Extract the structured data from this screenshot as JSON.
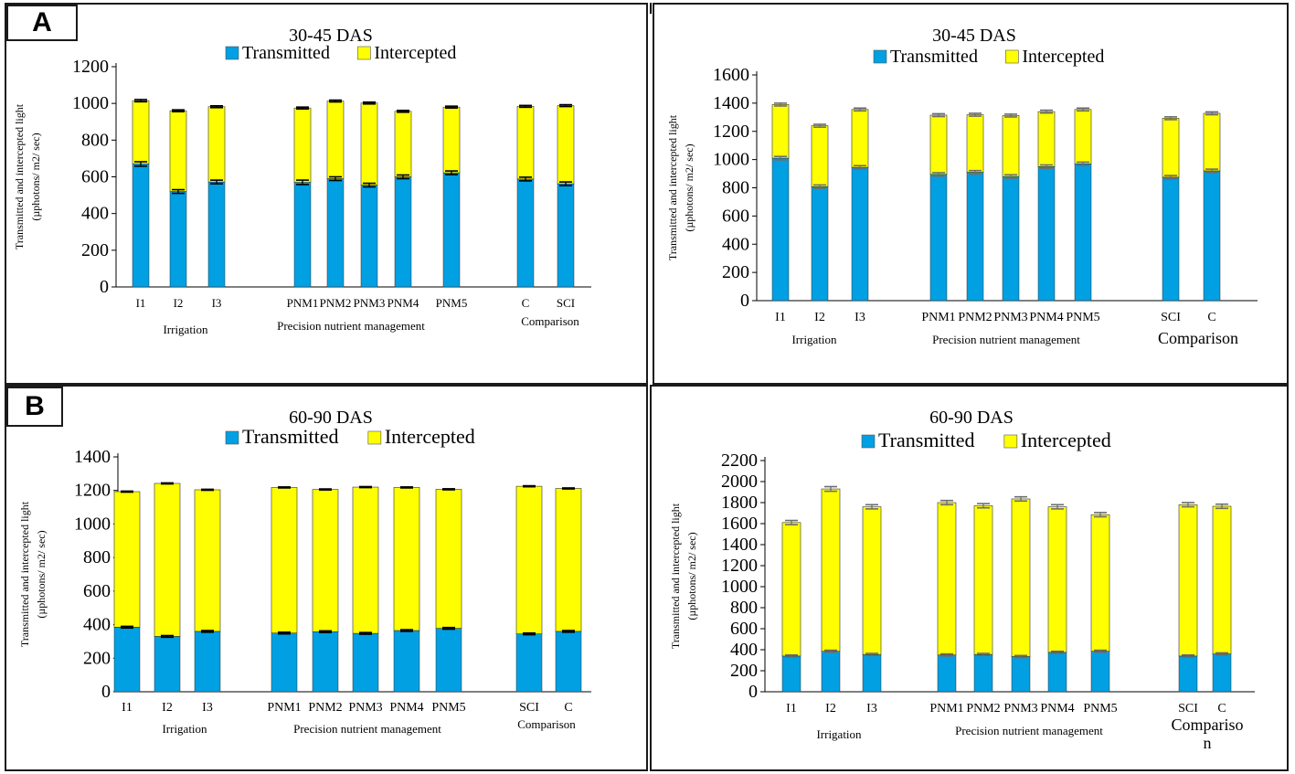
{
  "panel_labels": {
    "A": "A",
    "B": "B"
  },
  "colors": {
    "transmitted": "#00A0E3",
    "intercepted": "#FFFF00",
    "outline": "#000000",
    "error_dark": "#000000",
    "error_grey": "#6d6d6d"
  },
  "chart_data": [
    {
      "type": "bar",
      "stacked": true,
      "title": "30-45 DAS",
      "legend": [
        "Transmitted",
        "Intercepted"
      ],
      "ylabel_line1": "Transmitted and intercepted light",
      "ylabel_line2": "(µphotons/ m2/ sec)",
      "ylim": [
        0,
        1200
      ],
      "yticks": [
        0,
        200,
        400,
        600,
        800,
        1000,
        1200
      ],
      "categories": [
        "I1",
        "I2",
        "I3",
        "PNM1",
        "PNM2",
        "PNM3",
        "PNM4",
        "PNM5",
        "C",
        "SCI"
      ],
      "groups": [
        {
          "label": "Irrigation",
          "count": 3
        },
        {
          "label": "Precision nutrient management",
          "count": 5
        },
        {
          "label": "Comparison",
          "count": 2
        }
      ],
      "series": [
        {
          "name": "Transmitted",
          "values": [
            670,
            520,
            572,
            570,
            590,
            555,
            600,
            622,
            588,
            562
          ]
        },
        {
          "name": "Intercepted",
          "values": [
            345,
            440,
            410,
            405,
            423,
            447,
            357,
            358,
            396,
            426
          ]
        }
      ],
      "errors": [
        {
          "series": "Transmitted",
          "values": [
            12,
            10,
            10,
            12,
            10,
            10,
            10,
            10,
            10,
            10
          ]
        },
        {
          "series": "Intercepted",
          "values": [
            6,
            5,
            5,
            5,
            5,
            5,
            5,
            5,
            5,
            5
          ]
        }
      ]
    },
    {
      "type": "bar",
      "stacked": true,
      "title": "30-45 DAS",
      "legend": [
        "Transmitted",
        "Intercepted"
      ],
      "ylabel_line1": "Transmitted and intercepted light",
      "ylabel_line2": "(µphotons/ m2/ sec)",
      "ylim": [
        0,
        1600
      ],
      "yticks": [
        0,
        200,
        400,
        600,
        800,
        1000,
        1200,
        1400,
        1600
      ],
      "categories": [
        "I1",
        "I2",
        "I3",
        "PNM1",
        "PNM2",
        "PNM3",
        "PNM4",
        "PNM5",
        "SCI",
        "C"
      ],
      "groups": [
        {
          "label": "Irrigation",
          "count": 3
        },
        {
          "label": "Precision nutrient management",
          "count": 5
        },
        {
          "label": "Comparison",
          "count": 2
        }
      ],
      "series": [
        {
          "name": "Transmitted",
          "values": [
            1010,
            808,
            945,
            895,
            910,
            880,
            950,
            970,
            875,
            920
          ]
        },
        {
          "name": "Intercepted",
          "values": [
            380,
            432,
            410,
            420,
            408,
            432,
            390,
            385,
            418,
            408
          ]
        }
      ],
      "errors": [
        {
          "series": "Transmitted",
          "values": [
            12,
            12,
            12,
            12,
            12,
            12,
            12,
            12,
            12,
            12
          ]
        },
        {
          "series": "Intercepted",
          "values": [
            10,
            10,
            10,
            10,
            10,
            10,
            10,
            10,
            10,
            10
          ]
        }
      ]
    },
    {
      "type": "bar",
      "stacked": true,
      "title": "60-90 DAS",
      "legend": [
        "Transmitted",
        "Intercepted"
      ],
      "ylabel_line1": "Transmitted and intercepted light",
      "ylabel_line2": "(µphotons/ m2/ sec)",
      "ylim": [
        0,
        1400
      ],
      "yticks": [
        0,
        200,
        400,
        600,
        800,
        1000,
        1200,
        1400
      ],
      "categories": [
        "I1",
        "I2",
        "I3",
        "PNM1",
        "PNM2",
        "PNM3",
        "PNM4",
        "PNM5",
        "SCI",
        "C"
      ],
      "groups": [
        {
          "label": "Irrigation",
          "count": 3
        },
        {
          "label": "Precision nutrient management",
          "count": 5
        },
        {
          "label": "Comparison",
          "count": 2
        }
      ],
      "series": [
        {
          "name": "Transmitted",
          "values": [
            385,
            330,
            360,
            350,
            358,
            348,
            365,
            378,
            345,
            360
          ]
        },
        {
          "name": "Intercepted",
          "values": [
            808,
            912,
            844,
            868,
            848,
            872,
            853,
            829,
            880,
            852
          ]
        }
      ],
      "errors": [
        {
          "series": "Transmitted",
          "values": [
            5,
            5,
            5,
            5,
            5,
            5,
            5,
            5,
            5,
            5
          ]
        },
        {
          "series": "Intercepted",
          "values": [
            3,
            3,
            3,
            3,
            3,
            3,
            3,
            3,
            3,
            3
          ]
        }
      ]
    },
    {
      "type": "bar",
      "stacked": true,
      "title": "60-90 DAS",
      "legend": [
        "Transmitted",
        "Intercepted"
      ],
      "ylabel_line1": "Transmitted and intercepted light",
      "ylabel_line2": "(µphotons/ m2/ sec)",
      "ylim": [
        0,
        2200
      ],
      "yticks": [
        0,
        200,
        400,
        600,
        800,
        1000,
        1200,
        1400,
        1600,
        1800,
        2000,
        2200
      ],
      "categories": [
        "I1",
        "I2",
        "I3",
        "PNM1",
        "PNM2",
        "PNM3",
        "PNM4",
        "PNM5",
        "SCI",
        "C"
      ],
      "groups": [
        {
          "label": "Irrigation",
          "count": 3
        },
        {
          "label": "Precision nutrient management",
          "count": 5
        },
        {
          "label": "Compariso n",
          "count": 2
        }
      ],
      "series": [
        {
          "name": "Transmitted",
          "values": [
            340,
            385,
            355,
            350,
            355,
            335,
            375,
            385,
            340,
            360
          ]
        },
        {
          "name": "Intercepted",
          "values": [
            1270,
            1545,
            1405,
            1450,
            1415,
            1500,
            1385,
            1300,
            1440,
            1405
          ]
        }
      ],
      "errors": [
        {
          "series": "Transmitted",
          "values": [
            10,
            10,
            10,
            10,
            10,
            10,
            10,
            10,
            10,
            10
          ]
        },
        {
          "series": "Intercepted",
          "values": [
            20,
            22,
            20,
            20,
            20,
            20,
            20,
            20,
            20,
            20
          ]
        }
      ]
    }
  ]
}
